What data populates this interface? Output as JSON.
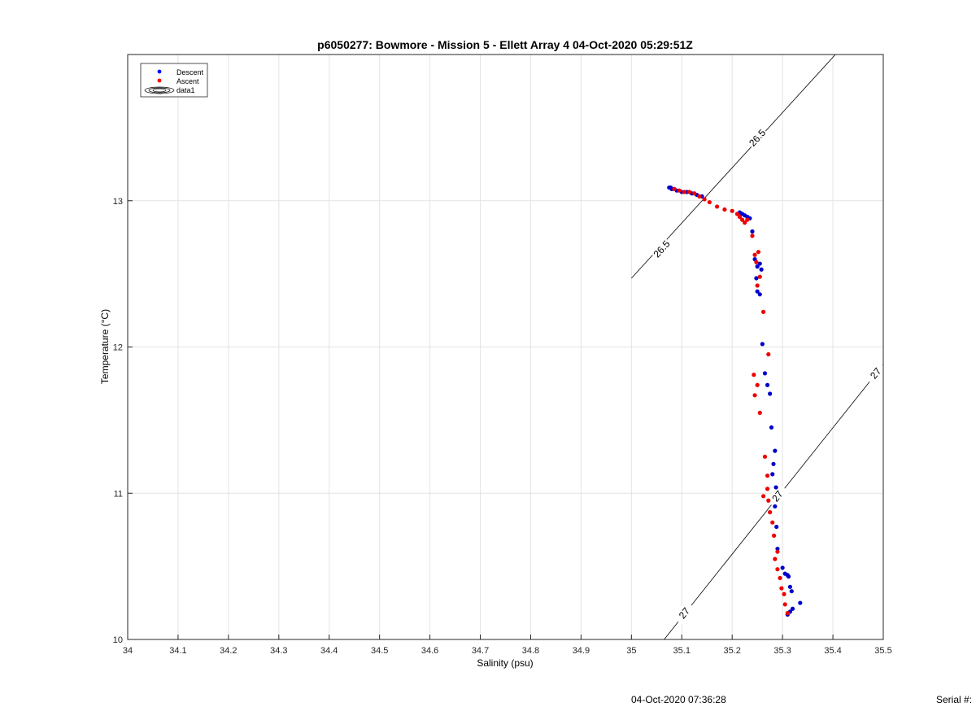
{
  "chart_data": {
    "type": "scatter",
    "title": "p6050277: Bowmore - Mission 5 - Ellett Array 4 04-Oct-2020 05:29:51Z",
    "xlabel": "Salinity (psu)",
    "ylabel": "Temperature (°C)",
    "xlim": [
      34,
      35.5
    ],
    "ylim": [
      10,
      14.0
    ],
    "xticks": [
      34,
      34.1,
      34.2,
      34.3,
      34.4,
      34.5,
      34.6,
      34.7,
      34.8,
      34.9,
      35,
      35.1,
      35.2,
      35.3,
      35.4,
      35.5
    ],
    "xtick_labels": [
      "34",
      "34.1",
      "34.2",
      "34.3",
      "34.4",
      "34.5",
      "34.6",
      "34.7",
      "34.8",
      "34.9",
      "35",
      "35.1",
      "35.2",
      "35.3",
      "35.4",
      "35.5"
    ],
    "yticks": [
      10,
      11,
      12,
      13
    ],
    "ytick_labels": [
      "10",
      "11",
      "12",
      "13"
    ],
    "grid": true,
    "legend_placement": "top-left",
    "legend": [
      {
        "name": "Descent",
        "marker": "dot",
        "color": "#0000ff"
      },
      {
        "name": "Ascent",
        "marker": "dot",
        "color": "#ff0000"
      },
      {
        "name": "data1",
        "marker": "contour"
      }
    ],
    "series": [
      {
        "name": "Descent",
        "color": "#0000cc",
        "x": [
          35.075,
          35.078,
          35.08,
          35.085,
          35.09,
          35.1,
          35.11,
          35.12,
          35.13,
          35.14,
          35.215,
          35.22,
          35.225,
          35.23,
          35.235,
          35.24,
          35.245,
          35.25,
          35.255,
          35.258,
          35.25,
          35.248,
          35.255,
          35.26,
          35.265,
          35.27,
          35.275,
          35.278,
          35.285,
          35.282,
          35.28,
          35.287,
          35.285,
          35.288,
          35.29,
          35.3,
          35.305,
          35.31,
          35.312,
          35.315,
          35.318,
          35.335,
          35.32,
          35.315,
          35.31
        ],
        "y": [
          13.09,
          13.09,
          13.08,
          13.08,
          13.07,
          13.06,
          13.06,
          13.05,
          13.04,
          13.03,
          12.92,
          12.91,
          12.9,
          12.89,
          12.88,
          12.79,
          12.6,
          12.55,
          12.57,
          12.53,
          12.38,
          12.47,
          12.36,
          12.02,
          11.82,
          11.74,
          11.68,
          11.45,
          11.29,
          11.2,
          11.13,
          11.04,
          10.91,
          10.77,
          10.62,
          10.49,
          10.45,
          10.44,
          10.43,
          10.36,
          10.33,
          10.25,
          10.21,
          10.19,
          10.17
        ]
      },
      {
        "name": "Ascent",
        "color": "#ee0000",
        "x": [
          35.085,
          35.095,
          35.105,
          35.115,
          35.125,
          35.135,
          35.145,
          35.155,
          35.17,
          35.185,
          35.2,
          35.21,
          35.215,
          35.22,
          35.225,
          35.23,
          35.24,
          35.245,
          35.248,
          35.252,
          35.255,
          35.25,
          35.262,
          35.272,
          35.243,
          35.25,
          35.245,
          35.255,
          35.265,
          35.27,
          35.27,
          35.262,
          35.272,
          35.275,
          35.28,
          35.283,
          35.29,
          35.285,
          35.29,
          35.295,
          35.298,
          35.303,
          35.305,
          35.31
        ],
        "y": [
          13.08,
          13.07,
          13.06,
          13.06,
          13.05,
          13.03,
          13.01,
          12.99,
          12.96,
          12.94,
          12.93,
          12.91,
          12.89,
          12.87,
          12.85,
          12.87,
          12.76,
          12.63,
          12.58,
          12.65,
          12.48,
          12.42,
          12.24,
          11.95,
          11.81,
          11.74,
          11.67,
          11.55,
          11.25,
          11.12,
          11.03,
          10.98,
          10.95,
          10.87,
          10.8,
          10.71,
          10.6,
          10.55,
          10.48,
          10.42,
          10.35,
          10.31,
          10.24,
          10.18
        ]
      }
    ],
    "contours": [
      {
        "level_label": "26.5",
        "from": [
          35.0,
          12.47
        ],
        "to": [
          35.405,
          14.0
        ],
        "label_points": [
          [
            35.06,
            12.67
          ],
          [
            35.25,
            13.43
          ]
        ]
      },
      {
        "level_label": "27",
        "from": [
          35.065,
          10.0
        ],
        "to": [
          35.5,
          11.88
        ],
        "label_points": [
          [
            35.105,
            10.18
          ],
          [
            35.29,
            10.98
          ],
          [
            35.485,
            11.82
          ]
        ]
      }
    ]
  },
  "footer": {
    "timestamp": "04-Oct-2020 07:36:28",
    "serial_label": "Serial #:"
  }
}
